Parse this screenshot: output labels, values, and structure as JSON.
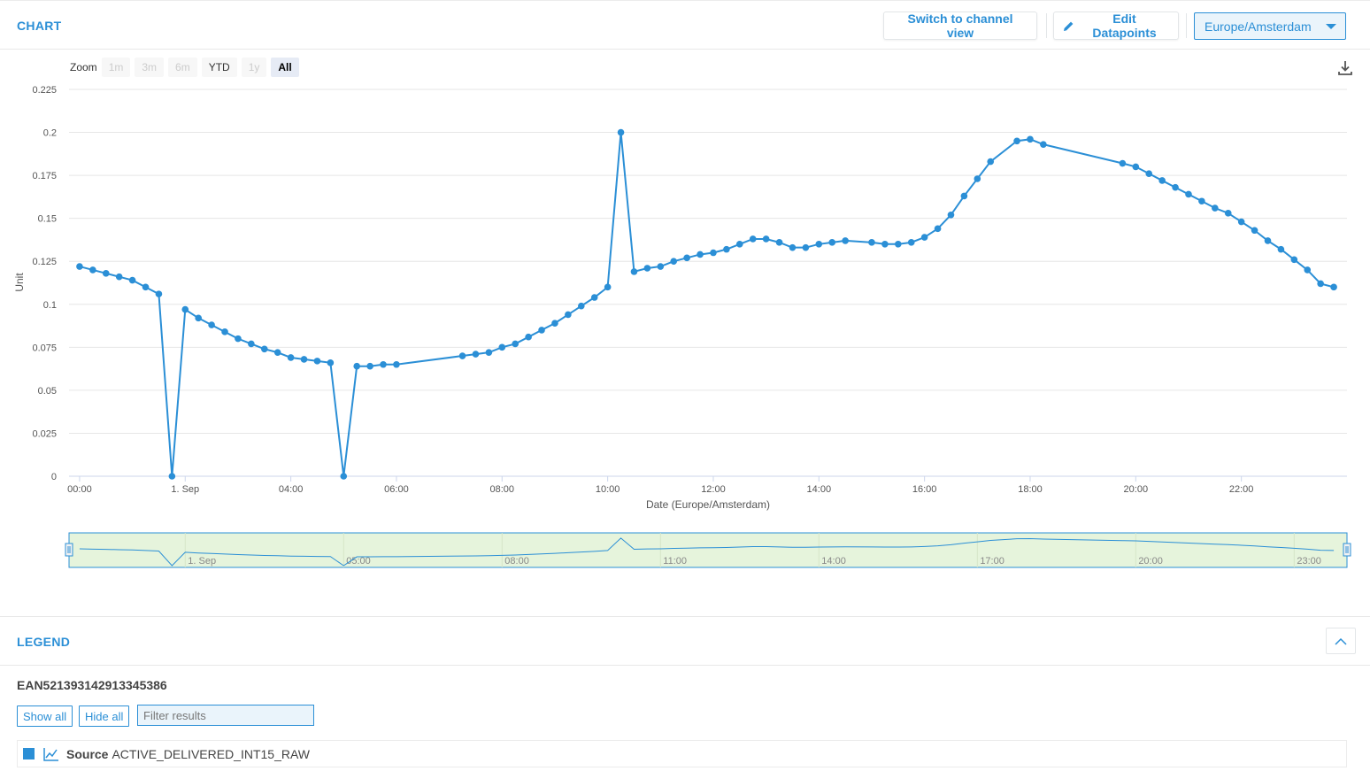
{
  "header": {
    "title": "CHART",
    "switch_label": "Switch to channel view",
    "edit_label": "Edit Datapoints",
    "timezone": "Europe/Amsterdam"
  },
  "zoom": {
    "label": "Zoom",
    "buttons": [
      {
        "label": "1m",
        "state": "disabled"
      },
      {
        "label": "3m",
        "state": "disabled"
      },
      {
        "label": "6m",
        "state": "disabled"
      },
      {
        "label": "YTD",
        "state": "enabled"
      },
      {
        "label": "1y",
        "state": "disabled"
      },
      {
        "label": "All",
        "state": "active"
      }
    ]
  },
  "chart_data": {
    "type": "line",
    "title": "",
    "xlabel": "Date (Europe/Amsterdam)",
    "ylabel": "Unit",
    "ylim": [
      0,
      0.225
    ],
    "xlim_hours": [
      -0.2,
      24.0
    ],
    "y_ticks": [
      "0",
      "0.025",
      "0.05",
      "0.075",
      "0.1",
      "0.125",
      "0.15",
      "0.175",
      "0.2",
      "0.225"
    ],
    "x_ticks": [
      {
        "h": 0,
        "label": "00:00"
      },
      {
        "h": 2,
        "label": "1. Sep"
      },
      {
        "h": 4,
        "label": "04:00"
      },
      {
        "h": 6,
        "label": "06:00"
      },
      {
        "h": 8,
        "label": "08:00"
      },
      {
        "h": 10,
        "label": "10:00"
      },
      {
        "h": 12,
        "label": "12:00"
      },
      {
        "h": 14,
        "label": "14:00"
      },
      {
        "h": 16,
        "label": "16:00"
      },
      {
        "h": 18,
        "label": "18:00"
      },
      {
        "h": 20,
        "label": "20:00"
      },
      {
        "h": 22,
        "label": "22:00"
      }
    ],
    "grid": true,
    "series": [
      {
        "name": "Source ACTIVE_DELIVERED_INT15_RAW",
        "color": "#2b8fd6",
        "x": [
          0.0,
          0.25,
          0.5,
          0.75,
          1.0,
          1.25,
          1.5,
          1.75,
          2.0,
          2.25,
          2.5,
          2.75,
          3.0,
          3.25,
          3.5,
          3.75,
          4.0,
          4.25,
          4.5,
          4.75,
          5.0,
          5.25,
          5.5,
          5.75,
          6.0,
          7.25,
          7.5,
          7.75,
          8.0,
          8.25,
          8.5,
          8.75,
          9.0,
          9.25,
          9.5,
          9.75,
          10.0,
          10.25,
          10.5,
          10.75,
          11.0,
          11.25,
          11.5,
          11.75,
          12.0,
          12.25,
          12.5,
          12.75,
          13.0,
          13.25,
          13.5,
          13.75,
          14.0,
          14.25,
          14.5,
          15.0,
          15.25,
          15.5,
          15.75,
          16.0,
          16.25,
          16.5,
          16.75,
          17.0,
          17.25,
          17.75,
          18.0,
          18.25,
          19.75,
          20.0,
          20.25,
          20.5,
          20.75,
          21.0,
          21.25,
          21.5,
          21.75,
          22.0,
          22.25,
          22.5,
          22.75,
          23.0,
          23.25,
          23.5,
          23.75
        ],
        "y": [
          0.122,
          0.12,
          0.118,
          0.116,
          0.114,
          0.11,
          0.106,
          0.0,
          0.097,
          0.092,
          0.088,
          0.084,
          0.08,
          0.077,
          0.074,
          0.072,
          0.069,
          0.068,
          0.067,
          0.066,
          0.0,
          0.064,
          0.064,
          0.065,
          0.065,
          0.07,
          0.071,
          0.072,
          0.075,
          0.077,
          0.081,
          0.085,
          0.089,
          0.094,
          0.099,
          0.104,
          0.11,
          0.2,
          0.119,
          0.121,
          0.122,
          0.125,
          0.127,
          0.129,
          0.13,
          0.132,
          0.135,
          0.138,
          0.138,
          0.136,
          0.133,
          0.133,
          0.135,
          0.136,
          0.137,
          0.136,
          0.135,
          0.135,
          0.136,
          0.139,
          0.144,
          0.152,
          0.163,
          0.173,
          0.183,
          0.195,
          0.196,
          0.193,
          0.182,
          0.18,
          0.176,
          0.172,
          0.168,
          0.164,
          0.16,
          0.156,
          0.153,
          0.148,
          0.143,
          0.137,
          0.132,
          0.126,
          0.12,
          0.112,
          0.11
        ]
      }
    ],
    "navigator_ticks": [
      "1. Sep",
      "05:00",
      "08:00",
      "11:00",
      "14:00",
      "17:00",
      "20:00",
      "23:00"
    ],
    "navigator_tick_hours": [
      2,
      5,
      8,
      11,
      14,
      17,
      20,
      23
    ]
  },
  "legend": {
    "title": "LEGEND",
    "ean": "EAN521393142913345386",
    "show_all": "Show all",
    "hide_all": "Hide all",
    "filter_placeholder": "Filter results",
    "source_label": "Source",
    "source_name": "ACTIVE_DELIVERED_INT15_RAW",
    "source_color": "#2b8fd6"
  }
}
